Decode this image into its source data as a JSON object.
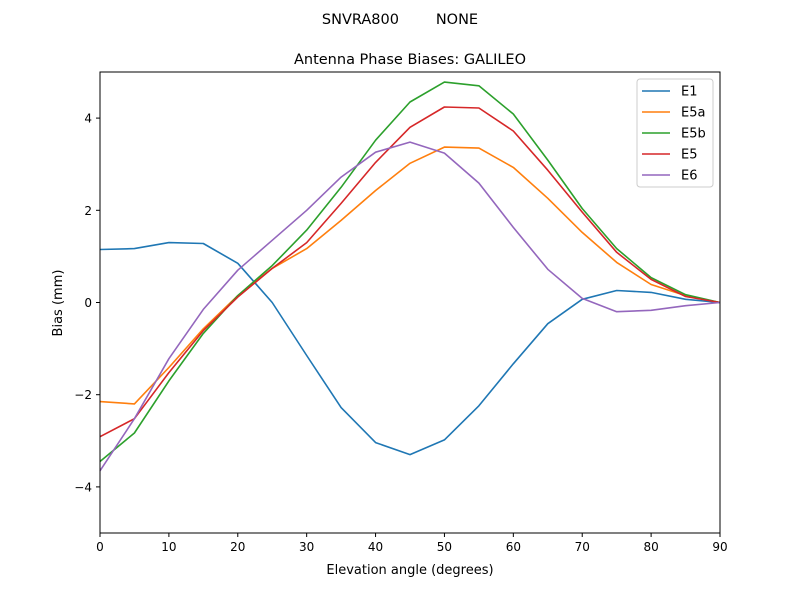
{
  "chart_data": {
    "type": "line",
    "suptitle": "SNVRA800        NONE",
    "title": "Antenna Phase Biases: GALILEO",
    "xlabel": "Elevation angle (degrees)",
    "ylabel": "Bias (mm)",
    "xlim": [
      0,
      90
    ],
    "ylim": [
      -5,
      5
    ],
    "xticks": [
      0,
      10,
      20,
      30,
      40,
      50,
      60,
      70,
      80,
      90
    ],
    "yticks": [
      -4,
      -2,
      0,
      2,
      4
    ],
    "ytick_labels": [
      "−4",
      "−2",
      "0",
      "2",
      "4"
    ],
    "grid": false,
    "legend_position": "top-right",
    "x": [
      0,
      5,
      10,
      15,
      20,
      25,
      30,
      35,
      40,
      45,
      50,
      55,
      60,
      65,
      70,
      75,
      80,
      85,
      90
    ],
    "series": [
      {
        "name": "E1",
        "color": "#1f77b4",
        "values": [
          1.15,
          1.17,
          1.3,
          1.28,
          0.85,
          0.0,
          -1.15,
          -2.28,
          -3.04,
          -3.3,
          -2.98,
          -2.24,
          -1.33,
          -0.46,
          0.07,
          0.26,
          0.22,
          0.07,
          0.0
        ]
      },
      {
        "name": "E5a",
        "color": "#ff7f0e",
        "values": [
          -2.15,
          -2.2,
          -1.41,
          -0.57,
          0.15,
          0.74,
          1.17,
          1.78,
          2.43,
          3.02,
          3.37,
          3.35,
          2.93,
          2.26,
          1.52,
          0.87,
          0.39,
          0.15,
          0.0
        ]
      },
      {
        "name": "E5b",
        "color": "#2ca02c",
        "values": [
          -3.45,
          -2.83,
          -1.7,
          -0.67,
          0.15,
          0.8,
          1.57,
          2.5,
          3.52,
          4.35,
          4.78,
          4.7,
          4.09,
          3.09,
          2.04,
          1.17,
          0.54,
          0.17,
          0.0
        ]
      },
      {
        "name": "E5",
        "color": "#d62728",
        "values": [
          -2.91,
          -2.52,
          -1.52,
          -0.61,
          0.12,
          0.74,
          1.3,
          2.15,
          3.04,
          3.8,
          4.24,
          4.22,
          3.72,
          2.87,
          1.96,
          1.09,
          0.5,
          0.13,
          0.0
        ]
      },
      {
        "name": "E6",
        "color": "#9467bd",
        "values": [
          -3.65,
          -2.52,
          -1.22,
          -0.15,
          0.7,
          1.35,
          2.0,
          2.72,
          3.26,
          3.48,
          3.24,
          2.59,
          1.63,
          0.72,
          0.09,
          -0.2,
          -0.17,
          -0.07,
          0.0
        ]
      }
    ]
  }
}
